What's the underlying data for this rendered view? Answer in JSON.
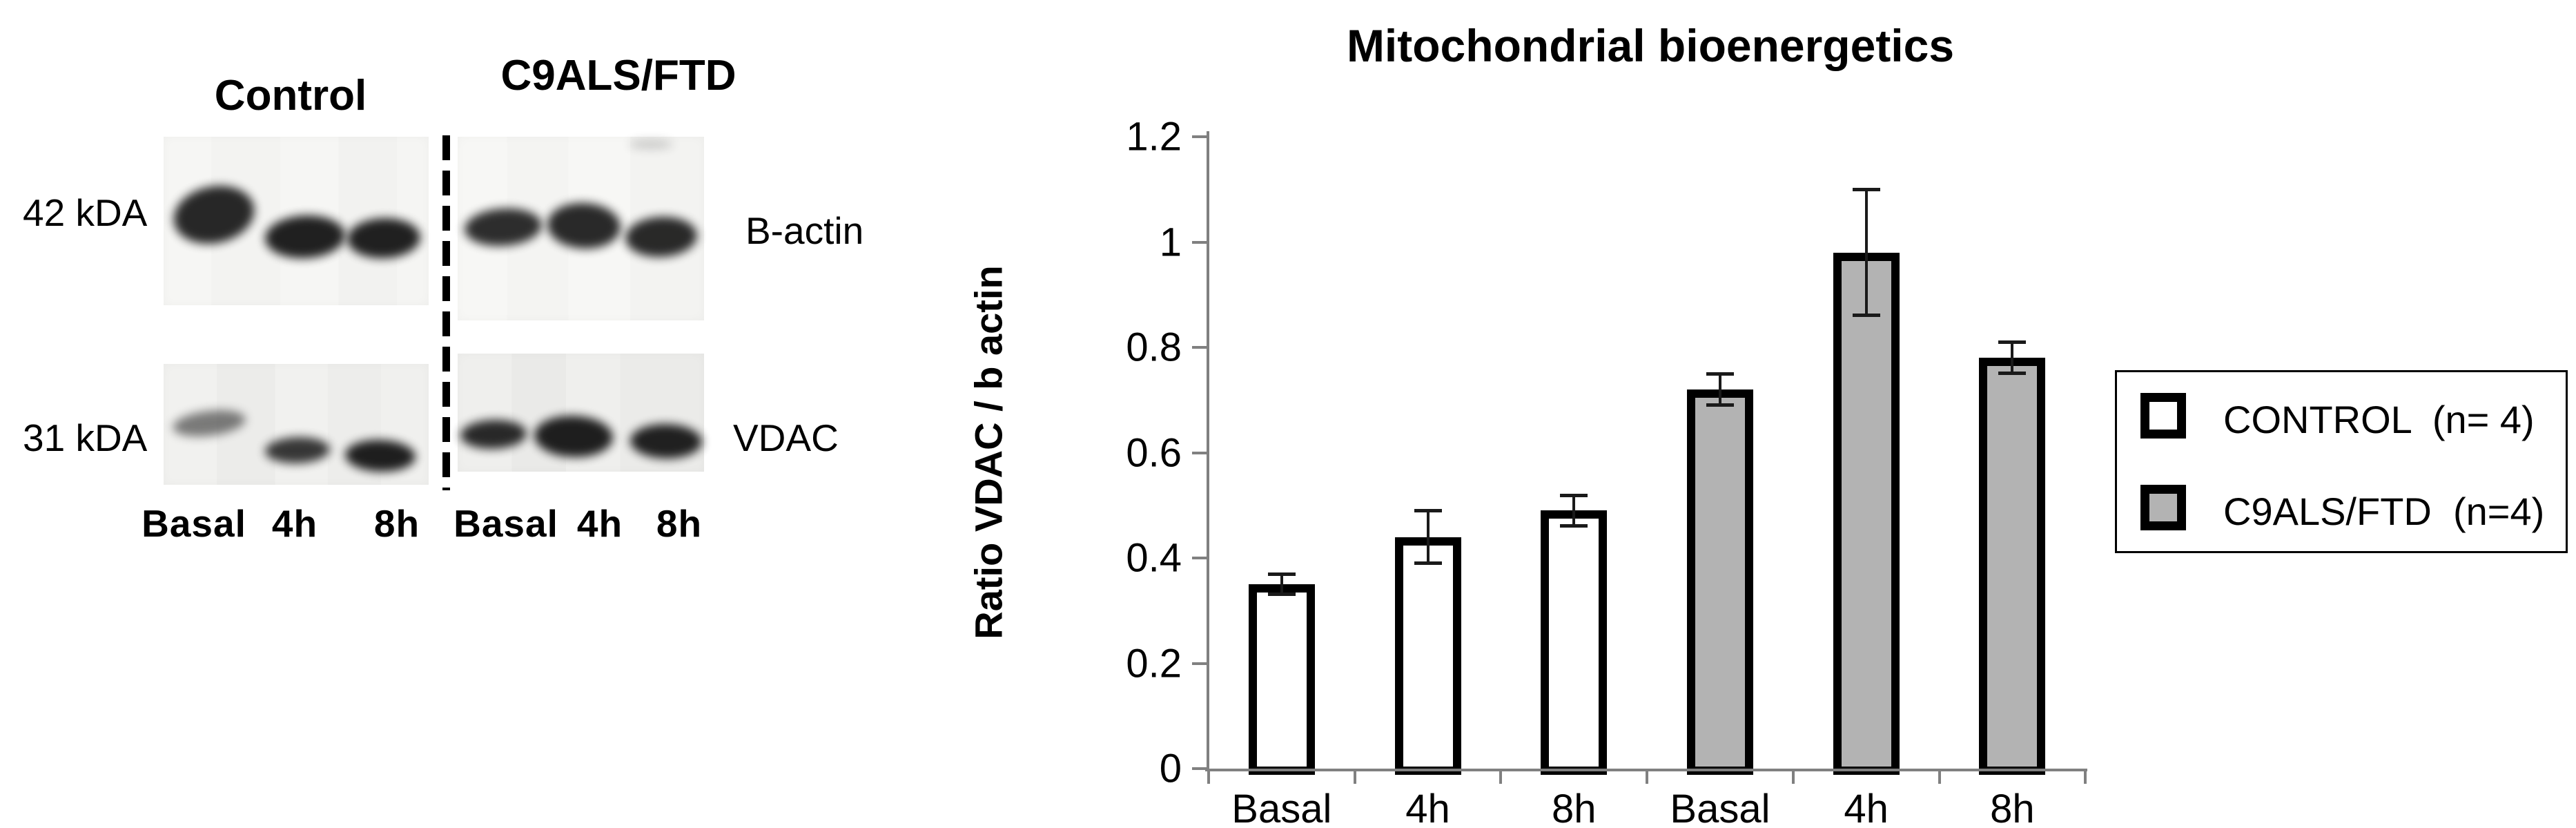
{
  "blot": {
    "groups": [
      {
        "label": "Control"
      },
      {
        "label": "C9ALS/FTD"
      }
    ],
    "mw_markers": [
      {
        "label": "42 kDA"
      },
      {
        "label": "31 kDA"
      }
    ],
    "proteins": [
      {
        "label": "B-actin"
      },
      {
        "label": "VDAC"
      }
    ],
    "lanes": [
      {
        "label": "Basal"
      },
      {
        "label": "4h"
      },
      {
        "label": "8h"
      },
      {
        "label": "Basal"
      },
      {
        "label": "4h"
      },
      {
        "label": "8h"
      }
    ]
  },
  "chart_data": {
    "type": "bar",
    "title": "Mitochondrial bioenergetics",
    "xlabel": "",
    "ylabel": "Ratio VDAC / b actin",
    "categories": [
      "Basal",
      "4h",
      "8h",
      "Basal",
      "4h",
      "8h"
    ],
    "series": [
      {
        "name": "CONTROL  (n= 4)",
        "group": "Control",
        "fill": "#ffffff",
        "categories": [
          "Basal",
          "4h",
          "8h"
        ],
        "values": [
          0.35,
          0.44,
          0.49
        ],
        "errors": [
          0.02,
          0.05,
          0.03
        ]
      },
      {
        "name": "C9ALS/FTD  (n=4)",
        "group": "C9ALS/FTD",
        "fill": "#b3b3b3",
        "categories": [
          "Basal",
          "4h",
          "8h"
        ],
        "values": [
          0.72,
          0.98,
          0.78
        ],
        "errors": [
          0.03,
          0.12,
          0.03
        ]
      }
    ],
    "ylim": [
      0,
      1.2
    ],
    "yticks": [
      {
        "label": "0",
        "value": 0
      },
      {
        "label": "0.2",
        "value": 0.2
      },
      {
        "label": "0.4",
        "value": 0.4
      },
      {
        "label": "0.6",
        "value": 0.6
      },
      {
        "label": "0.8",
        "value": 0.8
      },
      {
        "label": "1",
        "value": 1
      },
      {
        "label": "1.2",
        "value": 1.2
      }
    ],
    "grid": false,
    "legend_position": "right",
    "bar_border_color": "#000000",
    "error_bar_color": "#1a1a1a",
    "axis_color": "#808080"
  },
  "legend": {
    "items": [
      {
        "label": "CONTROL  (n= 4)",
        "fill": "#ffffff"
      },
      {
        "label": "C9ALS/FTD  (n=4)",
        "fill": "#b3b3b3"
      }
    ]
  }
}
